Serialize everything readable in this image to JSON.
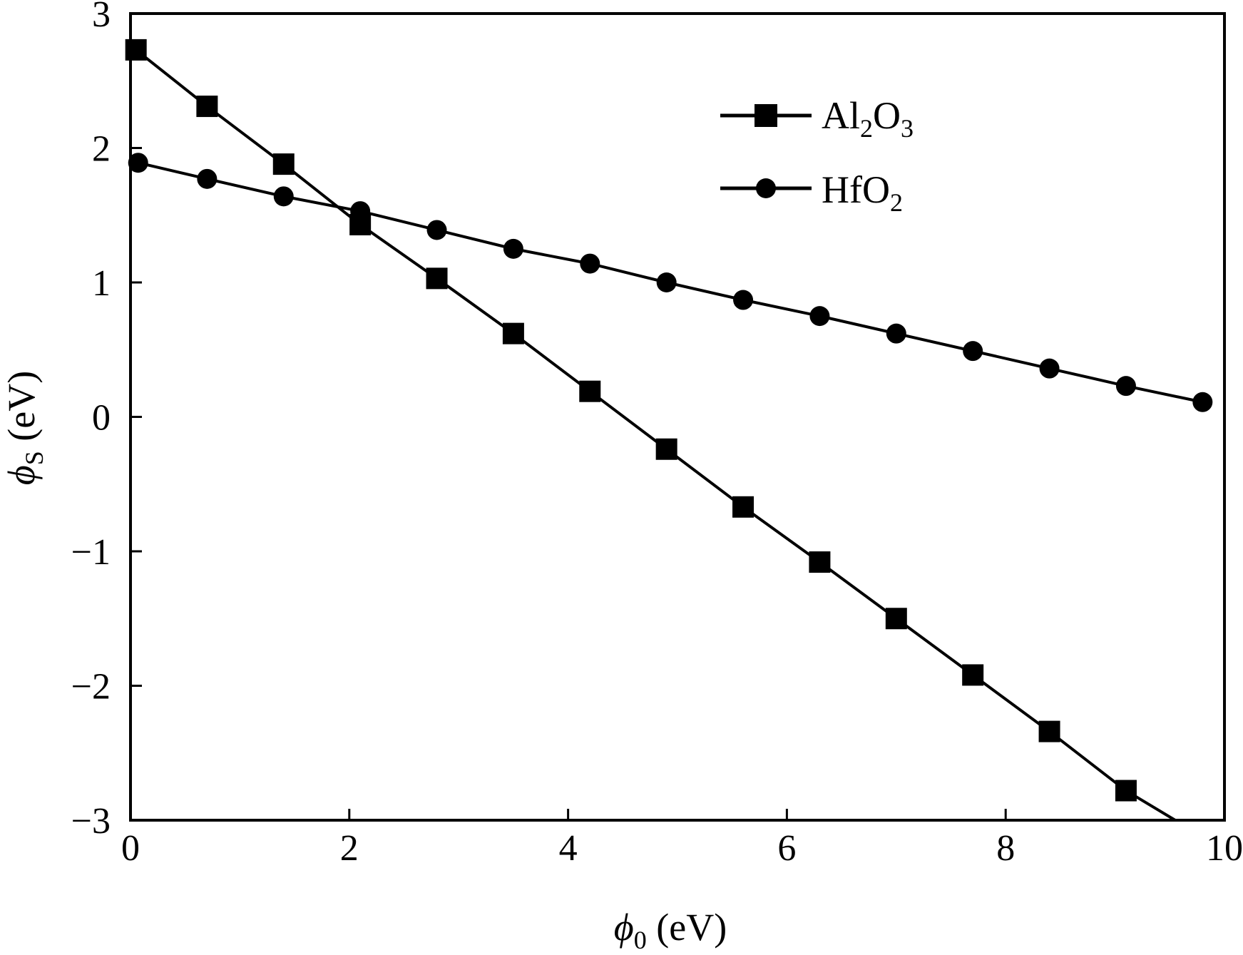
{
  "chart_data": {
    "type": "line",
    "title": "",
    "xlabel": {
      "symbol": "ϕ",
      "sub": "0",
      "unit": " (eV)"
    },
    "ylabel": {
      "symbol": "ϕ",
      "sub": "S",
      "unit": " (eV)"
    },
    "xlim": [
      0,
      10
    ],
    "ylim": [
      -3,
      3
    ],
    "x_ticks": [
      0,
      2,
      4,
      6,
      8,
      10
    ],
    "x_tick_labels": [
      "0",
      "2",
      "4",
      "6",
      "8",
      "10"
    ],
    "y_ticks": [
      -3,
      -2,
      -1,
      0,
      1,
      2,
      3
    ],
    "y_tick_labels": [
      "−3",
      "−2",
      "−1",
      "0",
      "1",
      "2",
      "3"
    ],
    "grid": false,
    "legend_position": "top-right",
    "series": [
      {
        "name": "Al2O3",
        "name_parts": {
          "base": "Al",
          "sub1": "2",
          "mid": "O",
          "sub2": "3"
        },
        "marker": "square",
        "x": [
          0.05,
          0.7,
          1.4,
          2.1,
          2.8,
          3.5,
          4.2,
          4.9,
          5.6,
          6.3,
          7.0,
          7.7,
          8.4,
          9.1,
          9.55
        ],
        "y": [
          2.73,
          2.31,
          1.88,
          1.43,
          1.03,
          0.62,
          0.19,
          -0.24,
          -0.67,
          -1.08,
          -1.5,
          -1.92,
          -2.34,
          -2.78,
          -3.0
        ],
        "marker_x": [
          0.05,
          0.7,
          1.4,
          2.1,
          2.8,
          3.5,
          4.2,
          4.9,
          5.6,
          6.3,
          7.0,
          7.7,
          8.4,
          9.1
        ],
        "marker_y": [
          2.73,
          2.31,
          1.88,
          1.43,
          1.03,
          0.62,
          0.19,
          -0.24,
          -0.67,
          -1.08,
          -1.5,
          -1.92,
          -2.34,
          -2.78
        ]
      },
      {
        "name": "HfO2",
        "name_parts": {
          "base": "HfO",
          "sub1": "2",
          "mid": "",
          "sub2": ""
        },
        "marker": "circle",
        "x": [
          0.07,
          0.7,
          1.4,
          2.1,
          2.8,
          3.5,
          4.2,
          4.9,
          5.6,
          6.3,
          7.0,
          7.7,
          8.4,
          9.1,
          9.8
        ],
        "y": [
          1.89,
          1.77,
          1.64,
          1.53,
          1.39,
          1.25,
          1.14,
          1.0,
          0.87,
          0.75,
          0.62,
          0.49,
          0.36,
          0.23,
          0.11
        ],
        "marker_x": [
          0.07,
          0.7,
          1.4,
          2.1,
          2.8,
          3.5,
          4.2,
          4.9,
          5.6,
          6.3,
          7.0,
          7.7,
          8.4,
          9.1,
          9.8
        ],
        "marker_y": [
          1.89,
          1.77,
          1.64,
          1.53,
          1.39,
          1.25,
          1.14,
          1.0,
          0.87,
          0.75,
          0.62,
          0.49,
          0.36,
          0.23,
          0.11
        ]
      }
    ]
  }
}
